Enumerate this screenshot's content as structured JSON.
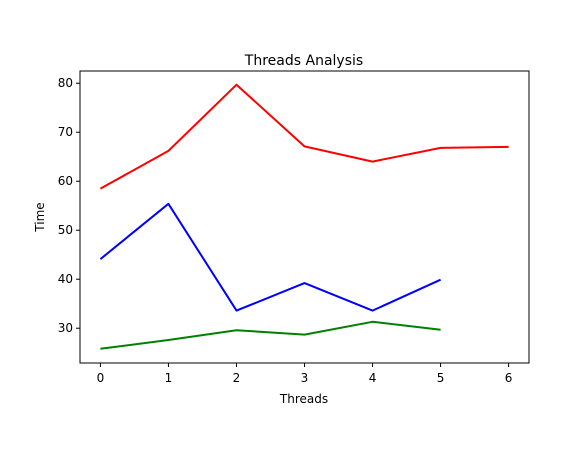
{
  "chart_data": {
    "type": "line",
    "title": "Threads Analysis",
    "xlabel": "Threads",
    "ylabel": "Time",
    "xlim": [
      -0.3,
      6.3
    ],
    "ylim": [
      22.9,
      82.5
    ],
    "xticks": [
      0,
      1,
      2,
      3,
      4,
      5,
      6
    ],
    "yticks": [
      30,
      40,
      50,
      60,
      70,
      80
    ],
    "grid": false,
    "legend": "none",
    "series": [
      {
        "color": "#ff0000",
        "x": [
          0,
          1,
          2,
          3,
          4,
          5,
          6
        ],
        "y": [
          58.5,
          66.2,
          79.7,
          67.1,
          64.0,
          66.8,
          67.0
        ]
      },
      {
        "color": "#0000ff",
        "x": [
          0,
          1,
          2,
          3,
          4,
          5
        ],
        "y": [
          44.1,
          55.4,
          33.6,
          39.2,
          33.6,
          39.9
        ]
      },
      {
        "color": "#008000",
        "x": [
          0,
          1,
          2,
          3,
          4,
          5
        ],
        "y": [
          25.8,
          27.6,
          29.6,
          28.7,
          31.3,
          29.7
        ]
      }
    ]
  }
}
